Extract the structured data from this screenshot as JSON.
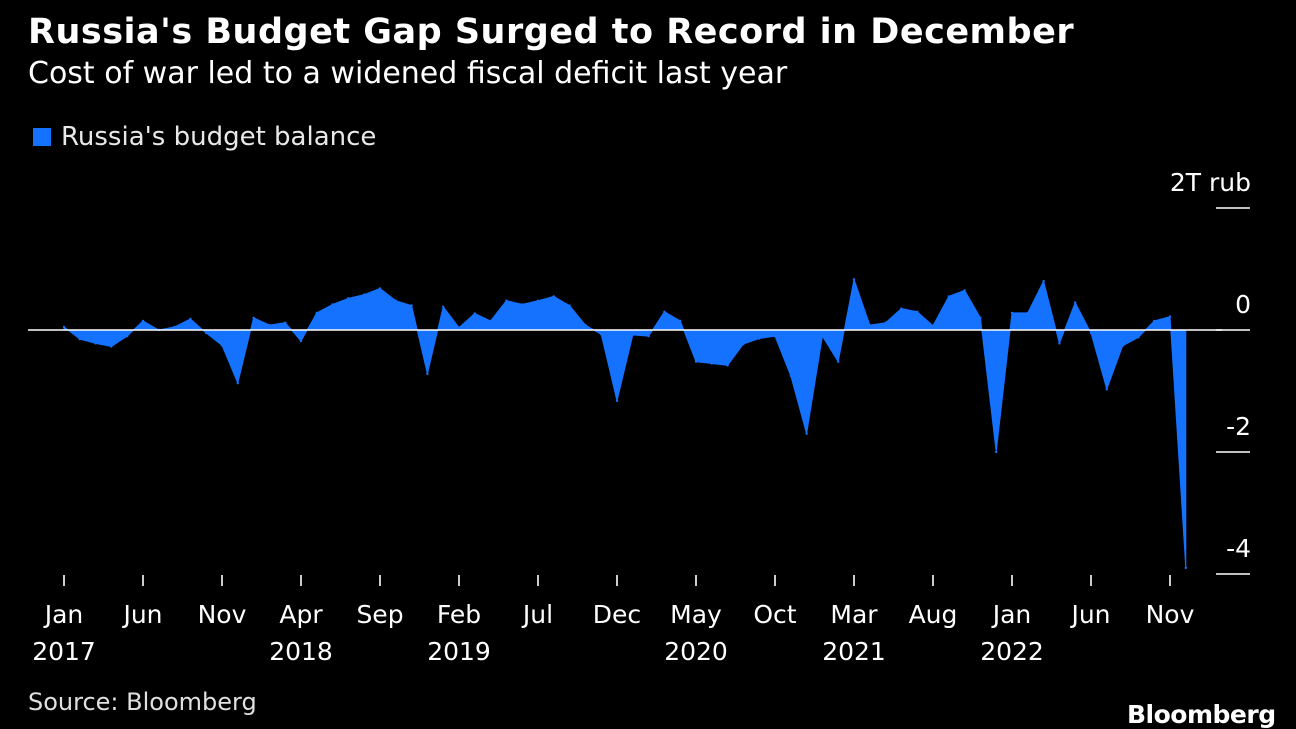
{
  "header": {
    "title": "Russia's Budget Gap Surged to Record in December",
    "subtitle": "Cost of war led to a widened fiscal deficit last year"
  },
  "legend": {
    "label": "Russia's budget balance",
    "color": "#1572ff"
  },
  "footer": {
    "source": "Source: Bloomberg",
    "brand": "Bloomberg"
  },
  "chart_data": {
    "type": "area",
    "title": "Russia's Budget Gap Surged to Record in December",
    "subtitle": "Cost of war led to a widened fiscal deficit last year",
    "series": [
      {
        "name": "Russia's budget balance",
        "color": "#1572ff"
      }
    ],
    "y_unit_label": "2T rub",
    "ylim": [
      -4,
      2
    ],
    "yticks": [
      {
        "value": 2,
        "label": "2T rub"
      },
      {
        "value": 0,
        "label": "0"
      },
      {
        "value": -2,
        "label": "-2"
      },
      {
        "value": -4,
        "label": "-4"
      }
    ],
    "xticks": [
      {
        "index": 0,
        "month": "Jan",
        "year": "2017"
      },
      {
        "index": 5,
        "month": "Jun",
        "year": ""
      },
      {
        "index": 10,
        "month": "Nov",
        "year": ""
      },
      {
        "index": 15,
        "month": "Apr",
        "year": "2018"
      },
      {
        "index": 20,
        "month": "Sep",
        "year": ""
      },
      {
        "index": 25,
        "month": "Feb",
        "year": "2019"
      },
      {
        "index": 30,
        "month": "Jul",
        "year": ""
      },
      {
        "index": 35,
        "month": "Dec",
        "year": ""
      },
      {
        "index": 40,
        "month": "May",
        "year": "2020"
      },
      {
        "index": 45,
        "month": "Oct",
        "year": ""
      },
      {
        "index": 50,
        "month": "Mar",
        "year": "2021"
      },
      {
        "index": 55,
        "month": "Aug",
        "year": ""
      },
      {
        "index": 60,
        "month": "Jan",
        "year": "2022"
      },
      {
        "index": 65,
        "month": "Jun",
        "year": ""
      },
      {
        "index": 70,
        "month": "Nov",
        "year": ""
      }
    ],
    "start": "2017-01",
    "values": [
      0.05,
      -0.15,
      -0.22,
      -0.27,
      -0.1,
      0.15,
      0.0,
      0.05,
      0.18,
      -0.05,
      -0.25,
      -0.87,
      0.2,
      0.08,
      0.12,
      -0.18,
      0.28,
      0.42,
      0.52,
      0.58,
      0.68,
      0.48,
      0.4,
      -0.72,
      0.38,
      0.04,
      0.27,
      0.15,
      0.48,
      0.42,
      0.48,
      0.55,
      0.4,
      0.08,
      -0.07,
      -1.16,
      -0.08,
      -0.1,
      0.3,
      0.15,
      -0.52,
      -0.55,
      -0.58,
      -0.23,
      -0.14,
      -0.1,
      -0.75,
      -1.7,
      -0.1,
      -0.52,
      0.83,
      0.08,
      0.12,
      0.35,
      0.3,
      0.07,
      0.55,
      0.65,
      0.2,
      -2.0,
      0.28,
      0.28,
      0.8,
      -0.22,
      0.45,
      -0.05,
      -0.97,
      -0.26,
      -0.12,
      0.15,
      0.22,
      -3.9
    ]
  }
}
